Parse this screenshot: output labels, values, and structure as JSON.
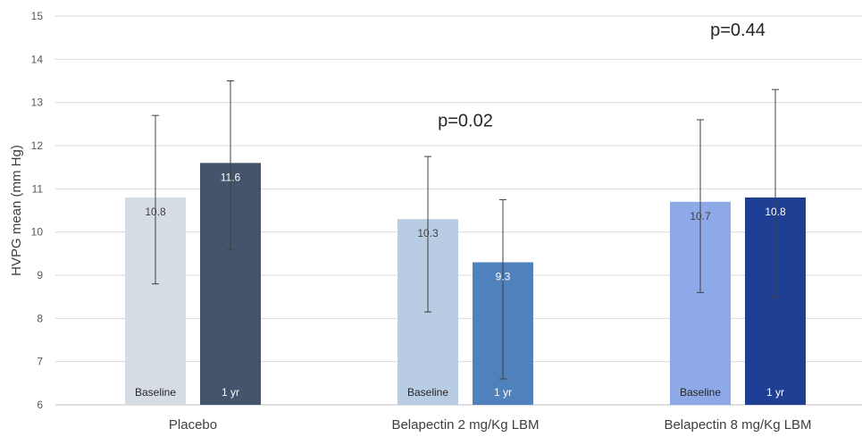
{
  "chart_data": {
    "type": "bar",
    "title": "",
    "xlabel": "",
    "ylabel": "HVPG mean (mm Hg)",
    "ylim": [
      6,
      15
    ],
    "yticks": [
      6,
      7,
      8,
      9,
      10,
      11,
      12,
      13,
      14,
      15
    ],
    "grid": "horizontal",
    "legend": "none",
    "categories": [
      "Placebo",
      "Belapectin 2 mg/Kg LBM",
      "Belapectin 8 mg/Kg LBM"
    ],
    "bars": [
      [
        {
          "label": "Baseline",
          "value": 10.8,
          "value_label": "10.8",
          "err_low": 8.8,
          "err_high": 12.7,
          "color": "#D5DCE4",
          "text_color": "#404040"
        },
        {
          "label": "1 yr",
          "value": 11.6,
          "value_label": "11.6",
          "err_low": 9.6,
          "err_high": 13.5,
          "color": "#44546A",
          "text_color": "#FFFFFF"
        }
      ],
      [
        {
          "label": "Baseline",
          "value": 10.3,
          "value_label": "10.3",
          "err_low": 8.15,
          "err_high": 11.75,
          "color": "#B8CCE4",
          "text_color": "#404040"
        },
        {
          "label": "1 yr",
          "value": 9.3,
          "value_label": "9.3",
          "err_low": 6.6,
          "err_high": 10.75,
          "color": "#4F81BD",
          "text_color": "#FFFFFF"
        }
      ],
      [
        {
          "label": "Baseline",
          "value": 10.7,
          "value_label": "10.7",
          "err_low": 8.6,
          "err_high": 12.6,
          "color": "#8EA9E8",
          "text_color": "#404040"
        },
        {
          "label": "1 yr",
          "value": 10.8,
          "value_label": "10.8",
          "err_low": 8.5,
          "err_high": 13.3,
          "color": "#1F3F94",
          "text_color": "#FFFFFF"
        }
      ]
    ],
    "annotations": [
      {
        "text": "p=0.02",
        "category_index": 1,
        "y": 12.45
      },
      {
        "text": "p=0.44",
        "category_index": 2,
        "y": 14.55
      }
    ]
  }
}
